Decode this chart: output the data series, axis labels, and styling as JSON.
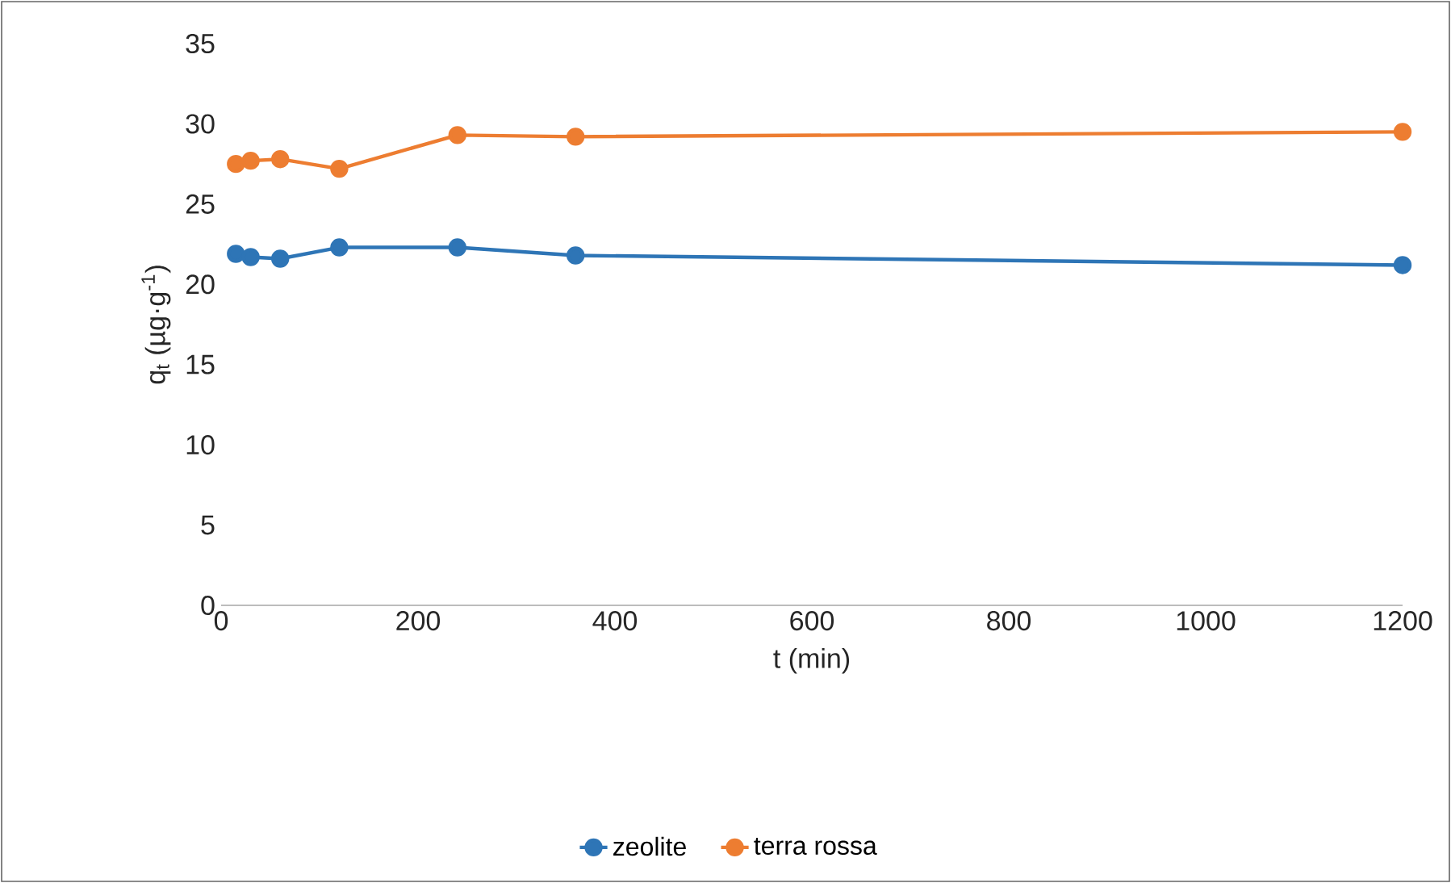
{
  "chart_data": {
    "type": "line",
    "xlabel": "t (min)",
    "ylabel": "q$_{t}$ (µg·g$^{-1}$)",
    "x": [
      15,
      30,
      60,
      120,
      240,
      360,
      1200
    ],
    "series": [
      {
        "name": "zeolite",
        "color": "#2e75b6",
        "values": [
          21.9,
          21.7,
          21.6,
          22.3,
          22.3,
          21.8,
          21.2
        ]
      },
      {
        "name": "terra rossa",
        "color": "#ed7d31",
        "values": [
          27.5,
          27.7,
          27.8,
          27.2,
          29.3,
          29.2,
          29.5
        ]
      }
    ],
    "xlim": [
      0,
      1200
    ],
    "ylim": [
      0,
      35
    ],
    "xticks": [
      0,
      200,
      400,
      600,
      800,
      1000,
      1200
    ],
    "yticks": [
      0,
      5,
      10,
      15,
      20,
      25,
      30,
      35
    ],
    "legend": "bottom",
    "marker": "circle"
  }
}
